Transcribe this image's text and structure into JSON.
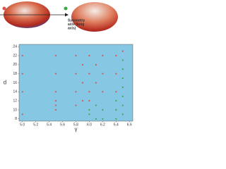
{
  "chart_data": {
    "type": "scatter",
    "annotation_lines": [
      "Symmetry",
      "axis (long",
      "axis)"
    ],
    "xlabel": "γ",
    "ylabel": "d",
    "xlim": [
      4.95,
      6.65
    ],
    "ylim": [
      7.5,
      24.5
    ],
    "xticks": [
      {
        "value": 5,
        "label": "5.0"
      },
      5.2,
      5.4,
      5.6,
      5.8,
      {
        "value": 6,
        "label": "6.0"
      },
      6.2,
      6.4,
      6.6
    ],
    "yticks": [
      8,
      10,
      12,
      14,
      16,
      18,
      20,
      22,
      24
    ],
    "background": "#86c8e4",
    "series": [
      {
        "color": "#d9534f",
        "x": [
          5.0,
          5.0,
          5.0,
          5.0,
          5.5,
          5.5,
          5.5,
          5.5,
          5.5,
          5.5,
          5.8,
          5.8,
          5.8,
          5.8,
          5.9,
          5.9,
          5.9,
          6.0,
          6.0,
          6.0,
          6.0,
          6.1,
          6.1,
          6.2,
          6.2,
          6.2,
          6.4,
          6.4,
          6.4,
          6.5
        ],
        "values": [
          22,
          18,
          14,
          9,
          22,
          18,
          14,
          12,
          11,
          10,
          22,
          18,
          14,
          11,
          20,
          16,
          12,
          22,
          18,
          14,
          12,
          20,
          16,
          22,
          18,
          14,
          22,
          18,
          14,
          23
        ]
      },
      {
        "color": "#3aa845",
        "x": [
          6.0,
          6.0,
          6.1,
          6.1,
          6.2,
          6.2,
          6.4,
          6.4,
          6.4,
          6.5,
          6.5,
          6.5,
          6.5,
          6.5,
          6.5,
          6.5
        ],
        "values": [
          10,
          9,
          11,
          8,
          10,
          8,
          12,
          10,
          8,
          21,
          19,
          17,
          15,
          13,
          11,
          9
        ]
      }
    ]
  }
}
